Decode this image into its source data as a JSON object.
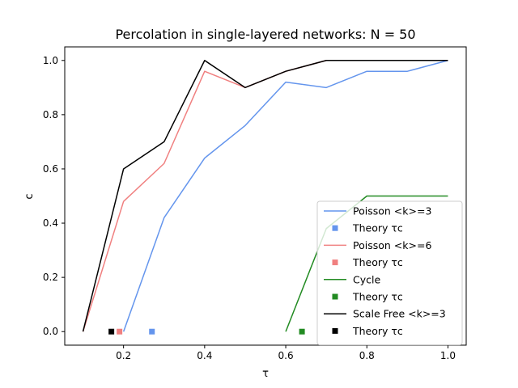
{
  "chart_data": {
    "type": "line",
    "title": "Percolation in single-layered networks: N = 50",
    "xlabel": "τ",
    "ylabel": "c",
    "xlim": [
      0.055,
      1.045
    ],
    "ylim": [
      -0.05,
      1.05
    ],
    "xticks": [
      "0.2",
      "0.4",
      "0.6",
      "0.8",
      "1.0"
    ],
    "xtick_values": [
      0.2,
      0.4,
      0.6,
      0.8,
      1.0
    ],
    "yticks": [
      "0.0",
      "0.2",
      "0.4",
      "0.6",
      "0.8",
      "1.0"
    ],
    "ytick_values": [
      0.0,
      0.2,
      0.4,
      0.6,
      0.8,
      1.0
    ],
    "grid": false,
    "legend_position": "lower right",
    "series": [
      {
        "name": "Poisson <k>=3",
        "color": "#6495ED",
        "x": [
          0.2,
          0.3,
          0.4,
          0.5,
          0.6,
          0.7,
          0.8,
          0.9,
          1.0
        ],
        "y": [
          0.0,
          0.42,
          0.64,
          0.76,
          0.92,
          0.9,
          0.96,
          0.96,
          1.0
        ],
        "theory_name": "Theory τc",
        "theory_tau": 0.27
      },
      {
        "name": "Poisson <k>=6",
        "color": "#F08080",
        "x": [
          0.1,
          0.2,
          0.3,
          0.4,
          0.5,
          0.6,
          0.7,
          0.8,
          0.9,
          1.0
        ],
        "y": [
          0.0,
          0.48,
          0.62,
          0.96,
          0.9,
          0.96,
          1.0,
          1.0,
          1.0,
          1.0
        ],
        "theory_name": "Theory τc",
        "theory_tau": 0.19
      },
      {
        "name": "Cycle",
        "color": "#228B22",
        "x": [
          0.6,
          0.7,
          0.8,
          0.9,
          1.0
        ],
        "y": [
          0.0,
          0.38,
          0.5,
          0.5,
          0.5
        ],
        "theory_name": "Theory τc",
        "theory_tau": 0.64
      },
      {
        "name": "Scale Free <k>=3",
        "color": "#000000",
        "x": [
          0.1,
          0.2,
          0.3,
          0.4,
          0.5,
          0.6,
          0.7,
          0.8,
          0.9,
          1.0
        ],
        "y": [
          0.0,
          0.6,
          0.7,
          1.0,
          0.9,
          0.96,
          1.0,
          1.0,
          1.0,
          1.0
        ],
        "theory_name": "Theory τc",
        "theory_tau": 0.17
      }
    ]
  }
}
